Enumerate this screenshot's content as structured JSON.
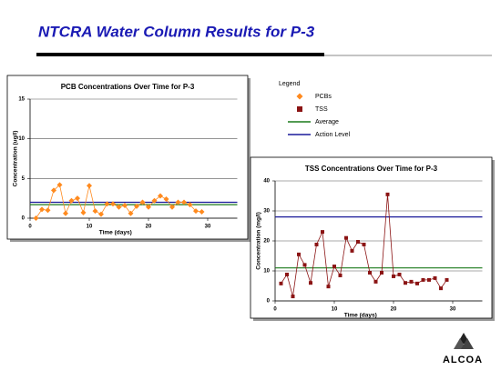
{
  "header": {
    "title": "NTCRA Water Column Results for P-3"
  },
  "legend_title": "Legend",
  "logo_text": "ALCOA",
  "chart_data": [
    {
      "type": "line",
      "title": "PCB Concentrations Over Time for P-3",
      "x_label": "Time (days)",
      "y_label": "Concentration (ug/l)",
      "x": [
        1,
        2,
        3,
        4,
        5,
        6,
        7,
        8,
        9,
        10,
        11,
        12,
        13,
        14,
        15,
        16,
        17,
        18,
        19,
        20,
        21,
        22,
        23,
        24,
        25,
        26,
        27,
        28,
        29
      ],
      "series": [
        {
          "name": "PCBs",
          "color": "#ff8a1e",
          "marker": "diamond",
          "values": [
            0,
            1.1,
            1,
            3.5,
            4.2,
            0.6,
            2.2,
            2.5,
            0.7,
            4.1,
            0.9,
            0.5,
            1.8,
            1.8,
            1.4,
            1.6,
            0.6,
            1.5,
            2,
            1.4,
            2.2,
            2.8,
            2.4,
            1.4,
            2,
            2,
            1.7,
            0.9,
            0.8
          ]
        }
      ],
      "reference_lines": [
        {
          "name": "Average",
          "value": 1.7,
          "color": "#1a7a1a"
        },
        {
          "name": "Action Level",
          "value": 2.0,
          "color": "#1a1a9a"
        }
      ],
      "xlim": [
        0,
        35
      ],
      "xticks": [
        0,
        10,
        20,
        30
      ],
      "ylim": [
        0,
        15
      ],
      "yticks": [
        0,
        5,
        10,
        15
      ],
      "grid": true
    },
    {
      "type": "line",
      "title": "TSS Concentrations Over Time for P-3",
      "x_label": "Time (days)",
      "y_label": "Concentration (mg/l)",
      "x": [
        1,
        2,
        3,
        4,
        5,
        6,
        7,
        8,
        9,
        10,
        11,
        12,
        13,
        14,
        15,
        16,
        17,
        18,
        19,
        20,
        21,
        22,
        23,
        24,
        25,
        26,
        27,
        28,
        29
      ],
      "series": [
        {
          "name": "TSS",
          "color": "#8b1414",
          "marker": "square",
          "values": [
            5.8,
            8.8,
            1.5,
            15.5,
            12,
            6,
            18.8,
            23,
            4.8,
            11.5,
            8.5,
            21,
            16.7,
            19.7,
            18.8,
            9.4,
            6.4,
            9.4,
            35.5,
            8.2,
            8.8,
            6,
            6.4,
            5.8,
            7,
            7,
            7.6,
            4.2,
            7
          ]
        }
      ],
      "reference_lines": [
        {
          "value": 11,
          "color": "#1a7a1a"
        },
        {
          "value": 28,
          "color": "#1a1a9a"
        }
      ],
      "xlim": [
        0,
        35
      ],
      "xticks": [
        0,
        10,
        20,
        30
      ],
      "ylim": [
        0,
        40
      ],
      "yticks": [
        0,
        10,
        20,
        30,
        40
      ],
      "grid": true
    }
  ]
}
